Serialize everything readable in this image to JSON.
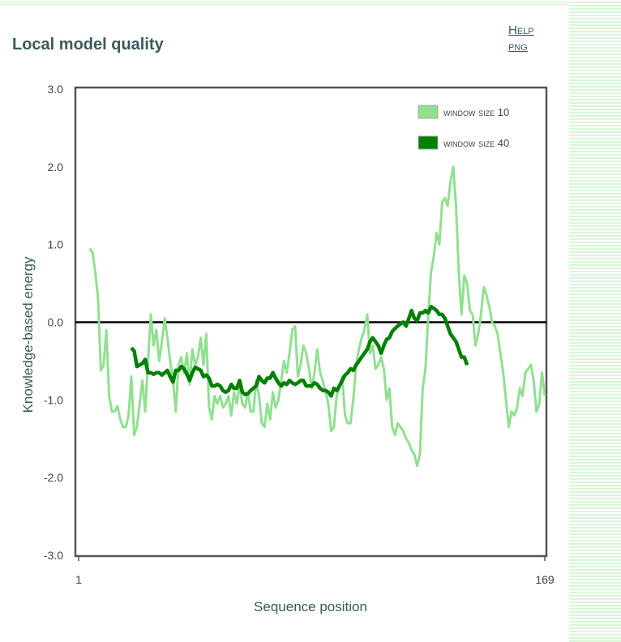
{
  "header": {
    "title": "Local model quality",
    "help_link": "Help",
    "png_link": "png"
  },
  "colors": {
    "window10": "#90e090",
    "window40": "#008000",
    "zero_line": "#000000",
    "frame": "#555555",
    "title": "#3a5a5a"
  },
  "chart_data": {
    "type": "line",
    "title": "Local model quality",
    "xlabel": "Sequence position",
    "ylabel": "Knowledge-based energy",
    "xlim": [
      1,
      169
    ],
    "ylim": [
      -3.0,
      3.0
    ],
    "x_tick_labels": [
      "1",
      "169"
    ],
    "y_tick_labels": [
      "3.0",
      "2.0",
      "1.0",
      "0.0",
      "-1.0",
      "-2.0",
      "-3.0"
    ],
    "y_ticks": [
      3.0,
      2.0,
      1.0,
      0.0,
      -1.0,
      -2.0,
      -3.0
    ],
    "grid": false,
    "legend_position": "top-right",
    "reference_line": 0.0,
    "series": [
      {
        "name": "window size 10",
        "points": [
          [
            5,
            0.95
          ],
          [
            6,
            0.9
          ],
          [
            7,
            0.65
          ],
          [
            8,
            0.3
          ],
          [
            9,
            -0.62
          ],
          [
            10,
            -0.55
          ],
          [
            11,
            -0.1
          ],
          [
            12,
            -0.95
          ],
          [
            13,
            -1.15
          ],
          [
            14,
            -1.15
          ],
          [
            15,
            -1.08
          ],
          [
            16,
            -1.25
          ],
          [
            17,
            -1.35
          ],
          [
            18,
            -1.35
          ],
          [
            19,
            -1.2
          ],
          [
            20,
            -0.7
          ],
          [
            21,
            -1.45
          ],
          [
            22,
            -1.35
          ],
          [
            23,
            -1.05
          ],
          [
            24,
            -0.75
          ],
          [
            25,
            -1.15
          ],
          [
            26,
            -0.5
          ],
          [
            27,
            0.1
          ],
          [
            28,
            -0.3
          ],
          [
            29,
            -0.1
          ],
          [
            30,
            -0.5
          ],
          [
            31,
            -0.25
          ],
          [
            32,
            0.05
          ],
          [
            33,
            -0.2
          ],
          [
            34,
            -0.5
          ],
          [
            35,
            -0.75
          ],
          [
            36,
            -1.15
          ],
          [
            37,
            -0.55
          ],
          [
            38,
            -0.45
          ],
          [
            39,
            -0.65
          ],
          [
            40,
            -0.4
          ],
          [
            41,
            -0.8
          ],
          [
            42,
            -0.35
          ],
          [
            43,
            -0.55
          ],
          [
            44,
            -0.45
          ],
          [
            45,
            -0.2
          ],
          [
            46,
            -0.55
          ],
          [
            47,
            -0.15
          ],
          [
            48,
            -1.1
          ],
          [
            49,
            -1.25
          ],
          [
            50,
            -0.95
          ],
          [
            51,
            -1.05
          ],
          [
            52,
            -0.95
          ],
          [
            53,
            -1.1
          ],
          [
            54,
            -1.05
          ],
          [
            55,
            -0.95
          ],
          [
            56,
            -1.2
          ],
          [
            57,
            -0.9
          ],
          [
            58,
            -1.05
          ],
          [
            59,
            -0.8
          ],
          [
            60,
            -1.05
          ],
          [
            61,
            -1.1
          ],
          [
            62,
            -0.9
          ],
          [
            63,
            -1.15
          ],
          [
            64,
            -1.15
          ],
          [
            65,
            -0.75
          ],
          [
            66,
            -0.95
          ],
          [
            67,
            -1.3
          ],
          [
            68,
            -1.35
          ],
          [
            69,
            -1.05
          ],
          [
            70,
            -1.25
          ],
          [
            71,
            -0.9
          ],
          [
            72,
            -1.1
          ],
          [
            73,
            -1.0
          ],
          [
            74,
            -0.75
          ],
          [
            75,
            -0.5
          ],
          [
            76,
            -0.65
          ],
          [
            77,
            -0.4
          ],
          [
            78,
            -0.1
          ],
          [
            79,
            -0.05
          ],
          [
            80,
            -0.7
          ],
          [
            81,
            -0.55
          ],
          [
            82,
            -0.3
          ],
          [
            83,
            -0.4
          ],
          [
            84,
            -0.6
          ],
          [
            85,
            -0.85
          ],
          [
            86,
            -0.65
          ],
          [
            87,
            -0.35
          ],
          [
            88,
            -0.65
          ],
          [
            89,
            -0.75
          ],
          [
            90,
            -0.9
          ],
          [
            91,
            -1.05
          ],
          [
            92,
            -1.4
          ],
          [
            93,
            -1.35
          ],
          [
            94,
            -0.95
          ],
          [
            95,
            -0.85
          ],
          [
            96,
            -0.7
          ],
          [
            97,
            -1.2
          ],
          [
            98,
            -1.3
          ],
          [
            99,
            -1.3
          ],
          [
            100,
            -1.0
          ],
          [
            101,
            -0.55
          ],
          [
            102,
            -0.35
          ],
          [
            103,
            -0.2
          ],
          [
            104,
            -0.1
          ],
          [
            105,
            0.1
          ],
          [
            106,
            -0.4
          ],
          [
            107,
            -0.3
          ],
          [
            108,
            -0.6
          ],
          [
            109,
            -0.55
          ],
          [
            110,
            -0.45
          ],
          [
            111,
            -0.6
          ],
          [
            112,
            -1.0
          ],
          [
            113,
            -0.85
          ],
          [
            114,
            -1.35
          ],
          [
            115,
            -1.45
          ],
          [
            116,
            -1.3
          ],
          [
            117,
            -1.35
          ],
          [
            118,
            -1.4
          ],
          [
            119,
            -1.5
          ],
          [
            120,
            -1.55
          ],
          [
            121,
            -1.65
          ],
          [
            122,
            -1.7
          ],
          [
            123,
            -1.85
          ],
          [
            124,
            -1.7
          ],
          [
            125,
            -0.85
          ],
          [
            126,
            -0.6
          ],
          [
            127,
            0.1
          ],
          [
            128,
            0.65
          ],
          [
            129,
            0.85
          ],
          [
            130,
            1.15
          ],
          [
            131,
            1.0
          ],
          [
            132,
            1.55
          ],
          [
            133,
            1.6
          ],
          [
            134,
            1.5
          ],
          [
            135,
            1.8
          ],
          [
            136,
            2.0
          ],
          [
            137,
            1.5
          ],
          [
            138,
            0.65
          ],
          [
            139,
            0.1
          ],
          [
            140,
            0.6
          ],
          [
            141,
            0.5
          ],
          [
            142,
            0.15
          ],
          [
            143,
            0.1
          ],
          [
            144,
            -0.3
          ],
          [
            145,
            -0.15
          ],
          [
            146,
            0.1
          ],
          [
            147,
            0.45
          ],
          [
            148,
            0.35
          ],
          [
            149,
            0.2
          ],
          [
            150,
            0.0
          ],
          [
            151,
            -0.05
          ],
          [
            152,
            -0.15
          ],
          [
            153,
            -0.4
          ],
          [
            154,
            -0.65
          ],
          [
            155,
            -1.0
          ],
          [
            156,
            -1.35
          ],
          [
            157,
            -1.15
          ],
          [
            158,
            -1.2
          ],
          [
            159,
            -1.1
          ],
          [
            160,
            -0.85
          ],
          [
            161,
            -0.95
          ],
          [
            162,
            -0.65
          ],
          [
            163,
            -0.6
          ],
          [
            164,
            -0.55
          ],
          [
            165,
            -0.75
          ],
          [
            166,
            -1.15
          ],
          [
            167,
            -1.05
          ],
          [
            168,
            -0.65
          ],
          [
            169,
            -0.95
          ]
        ]
      },
      {
        "name": "window size 40",
        "points": [
          [
            20,
            -0.33
          ],
          [
            21,
            -0.37
          ],
          [
            22,
            -0.57
          ],
          [
            23,
            -0.55
          ],
          [
            24,
            -0.53
          ],
          [
            25,
            -0.48
          ],
          [
            26,
            -0.65
          ],
          [
            27,
            -0.65
          ],
          [
            28,
            -0.67
          ],
          [
            29,
            -0.65
          ],
          [
            30,
            -0.65
          ],
          [
            31,
            -0.68
          ],
          [
            32,
            -0.65
          ],
          [
            33,
            -0.62
          ],
          [
            34,
            -0.7
          ],
          [
            35,
            -0.77
          ],
          [
            36,
            -0.62
          ],
          [
            37,
            -0.62
          ],
          [
            38,
            -0.57
          ],
          [
            39,
            -0.6
          ],
          [
            40,
            -0.67
          ],
          [
            41,
            -0.75
          ],
          [
            42,
            -0.65
          ],
          [
            43,
            -0.58
          ],
          [
            44,
            -0.6
          ],
          [
            45,
            -0.62
          ],
          [
            46,
            -0.7
          ],
          [
            47,
            -0.68
          ],
          [
            48,
            -0.72
          ],
          [
            49,
            -0.82
          ],
          [
            50,
            -0.82
          ],
          [
            51,
            -0.8
          ],
          [
            52,
            -0.82
          ],
          [
            53,
            -0.88
          ],
          [
            54,
            -0.9
          ],
          [
            55,
            -0.88
          ],
          [
            56,
            -0.8
          ],
          [
            57,
            -0.85
          ],
          [
            58,
            -0.85
          ],
          [
            59,
            -0.75
          ],
          [
            60,
            -0.9
          ],
          [
            61,
            -0.93
          ],
          [
            62,
            -0.92
          ],
          [
            63,
            -0.88
          ],
          [
            64,
            -0.85
          ],
          [
            65,
            -0.82
          ],
          [
            66,
            -0.7
          ],
          [
            67,
            -0.75
          ],
          [
            68,
            -0.78
          ],
          [
            69,
            -0.72
          ],
          [
            70,
            -0.72
          ],
          [
            71,
            -0.65
          ],
          [
            72,
            -0.72
          ],
          [
            73,
            -0.78
          ],
          [
            74,
            -0.82
          ],
          [
            75,
            -0.78
          ],
          [
            76,
            -0.8
          ],
          [
            77,
            -0.75
          ],
          [
            78,
            -0.78
          ],
          [
            79,
            -0.8
          ],
          [
            80,
            -0.78
          ],
          [
            81,
            -0.75
          ],
          [
            82,
            -0.75
          ],
          [
            83,
            -0.82
          ],
          [
            84,
            -0.82
          ],
          [
            85,
            -0.82
          ],
          [
            86,
            -0.78
          ],
          [
            87,
            -0.8
          ],
          [
            88,
            -0.85
          ],
          [
            89,
            -0.88
          ],
          [
            90,
            -0.88
          ],
          [
            91,
            -0.9
          ],
          [
            92,
            -0.95
          ],
          [
            93,
            -0.85
          ],
          [
            94,
            -0.88
          ],
          [
            95,
            -0.82
          ],
          [
            96,
            -0.75
          ],
          [
            97,
            -0.68
          ],
          [
            98,
            -0.65
          ],
          [
            99,
            -0.6
          ],
          [
            100,
            -0.62
          ],
          [
            101,
            -0.55
          ],
          [
            102,
            -0.5
          ],
          [
            103,
            -0.45
          ],
          [
            104,
            -0.4
          ],
          [
            105,
            -0.35
          ],
          [
            106,
            -0.25
          ],
          [
            107,
            -0.2
          ],
          [
            108,
            -0.25
          ],
          [
            109,
            -0.3
          ],
          [
            110,
            -0.4
          ],
          [
            111,
            -0.3
          ],
          [
            112,
            -0.22
          ],
          [
            113,
            -0.2
          ],
          [
            114,
            -0.12
          ],
          [
            115,
            -0.08
          ],
          [
            116,
            -0.05
          ],
          [
            117,
            -0.02
          ],
          [
            118,
            0.0
          ],
          [
            119,
            -0.05
          ],
          [
            120,
            0.05
          ],
          [
            121,
            0.15
          ],
          [
            122,
            0.05
          ],
          [
            123,
            0.02
          ],
          [
            124,
            0.12
          ],
          [
            125,
            0.12
          ],
          [
            126,
            0.15
          ],
          [
            127,
            0.12
          ],
          [
            128,
            0.2
          ],
          [
            129,
            0.18
          ],
          [
            130,
            0.15
          ],
          [
            131,
            0.1
          ],
          [
            132,
            0.1
          ],
          [
            133,
            0.05
          ],
          [
            134,
            -0.05
          ],
          [
            135,
            -0.15
          ],
          [
            136,
            -0.2
          ],
          [
            137,
            -0.25
          ],
          [
            138,
            -0.35
          ],
          [
            139,
            -0.45
          ],
          [
            140,
            -0.45
          ],
          [
            141,
            -0.55
          ]
        ]
      }
    ]
  }
}
